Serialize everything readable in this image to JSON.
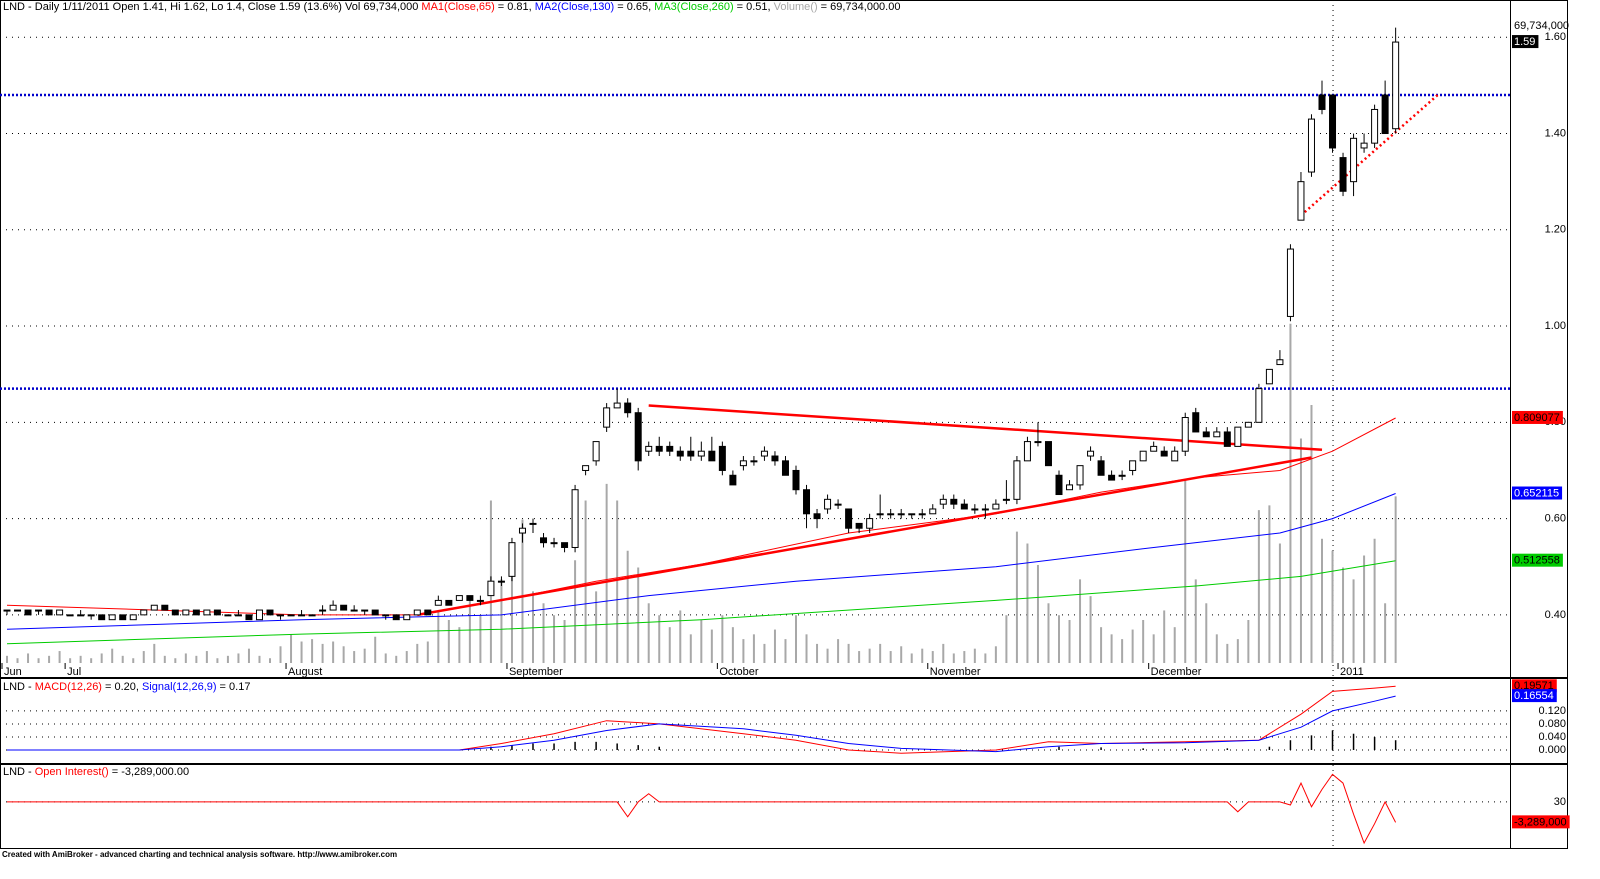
{
  "chart_data": [
    {
      "type": "candlestick",
      "title": "LND - Daily 1/11/2011 Open 1.41, Hi 1.62, Lo 1.4, Close 1.59 (13.6%) Vol 69,734,000",
      "categories": [
        "Jun",
        null,
        null,
        null,
        null,
        null,
        "Jul",
        null,
        null,
        null,
        null,
        null,
        null,
        null,
        null,
        null,
        null,
        null,
        null,
        null,
        null,
        null,
        null,
        null,
        null,
        null,
        null,
        "August",
        null,
        null,
        null,
        null,
        null,
        null,
        null,
        null,
        null,
        null,
        null,
        null,
        null,
        null,
        null,
        null,
        null,
        null,
        null,
        null,
        "September",
        null,
        null,
        null,
        null,
        null,
        null,
        null,
        null,
        null,
        null,
        null,
        null,
        null,
        null,
        null,
        null,
        null,
        null,
        null,
        "October",
        null,
        null,
        null,
        null,
        null,
        null,
        null,
        null,
        null,
        null,
        null,
        null,
        null,
        null,
        null,
        null,
        null,
        null,
        null,
        "November",
        null,
        null,
        null,
        null,
        null,
        null,
        null,
        null,
        null,
        null,
        null,
        null,
        null,
        null,
        null,
        null,
        null,
        null,
        null,
        null,
        "December",
        null,
        null,
        null,
        null,
        null,
        null,
        null,
        null,
        null,
        null,
        null,
        null,
        null,
        null,
        null,
        null,
        null,
        "2011",
        null,
        null,
        null,
        null,
        null
      ],
      "open": [
        0.41,
        0.41,
        0.41,
        0.41,
        0.41,
        0.4,
        0.4,
        0.4,
        0.4,
        0.4,
        0.39,
        0.4,
        0.39,
        0.4,
        0.41,
        0.42,
        0.41,
        0.4,
        0.41,
        0.4,
        0.41,
        0.4,
        0.4,
        0.4,
        0.39,
        0.41,
        0.4,
        0.4,
        0.4,
        0.4,
        0.41,
        0.41,
        0.42,
        0.41,
        0.41,
        0.41,
        0.4,
        0.4,
        0.39,
        0.4,
        0.41,
        0.42,
        0.43,
        0.43,
        0.44,
        0.43,
        0.44,
        0.47,
        0.48,
        0.57,
        0.59,
        0.56,
        0.55,
        0.55,
        0.54,
        0.7,
        0.72,
        0.79,
        0.83,
        0.84,
        0.82,
        0.74,
        0.75,
        0.75,
        0.74,
        0.74,
        0.73,
        0.74,
        0.75,
        0.69,
        0.71,
        0.72,
        0.73,
        0.73,
        0.72,
        0.7,
        0.66,
        0.61,
        0.62,
        0.63,
        0.62,
        0.59,
        0.58,
        0.61,
        0.61,
        0.61,
        0.61,
        0.61,
        0.61,
        0.63,
        0.64,
        0.63,
        0.62,
        0.62,
        0.62,
        0.64,
        0.64,
        0.72,
        0.76,
        0.76,
        0.69,
        0.66,
        0.67,
        0.73,
        0.72,
        0.69,
        0.69,
        0.7,
        0.72,
        0.74,
        0.74,
        0.72,
        0.74,
        0.82,
        0.78,
        0.77,
        0.78,
        0.75,
        0.79,
        0.8,
        0.88,
        0.92,
        1.02,
        1.22,
        1.32,
        1.48,
        1.48,
        1.35,
        1.3,
        1.37,
        1.38,
        1.48,
        1.41
      ],
      "high": [
        0.41,
        0.41,
        0.41,
        0.41,
        0.41,
        0.41,
        0.4,
        0.41,
        0.4,
        0.4,
        0.4,
        0.4,
        0.4,
        0.41,
        0.42,
        0.42,
        0.41,
        0.41,
        0.41,
        0.41,
        0.41,
        0.4,
        0.41,
        0.4,
        0.41,
        0.41,
        0.4,
        0.4,
        0.41,
        0.4,
        0.42,
        0.43,
        0.42,
        0.42,
        0.41,
        0.41,
        0.4,
        0.4,
        0.4,
        0.41,
        0.41,
        0.44,
        0.43,
        0.44,
        0.44,
        0.44,
        0.48,
        0.48,
        0.56,
        0.59,
        0.6,
        0.57,
        0.56,
        0.55,
        0.67,
        0.71,
        0.76,
        0.84,
        0.87,
        0.85,
        0.83,
        0.76,
        0.77,
        0.76,
        0.75,
        0.77,
        0.76,
        0.77,
        0.76,
        0.7,
        0.73,
        0.73,
        0.75,
        0.74,
        0.73,
        0.71,
        0.67,
        0.62,
        0.65,
        0.64,
        0.62,
        0.59,
        0.61,
        0.65,
        0.62,
        0.62,
        0.61,
        0.62,
        0.63,
        0.65,
        0.65,
        0.64,
        0.63,
        0.63,
        0.64,
        0.68,
        0.73,
        0.77,
        0.8,
        0.76,
        0.7,
        0.68,
        0.71,
        0.75,
        0.73,
        0.7,
        0.7,
        0.72,
        0.74,
        0.76,
        0.75,
        0.75,
        0.82,
        0.83,
        0.79,
        0.79,
        0.79,
        0.79,
        0.8,
        0.88,
        0.91,
        0.95,
        1.17,
        1.32,
        1.44,
        1.51,
        1.48,
        1.36,
        1.4,
        1.4,
        1.46,
        1.51,
        1.62
      ],
      "low": [
        0.4,
        0.41,
        0.4,
        0.4,
        0.4,
        0.4,
        0.4,
        0.4,
        0.39,
        0.39,
        0.39,
        0.39,
        0.39,
        0.4,
        0.41,
        0.41,
        0.4,
        0.4,
        0.4,
        0.4,
        0.4,
        0.4,
        0.4,
        0.39,
        0.39,
        0.4,
        0.39,
        0.4,
        0.4,
        0.4,
        0.4,
        0.41,
        0.41,
        0.41,
        0.4,
        0.4,
        0.39,
        0.39,
        0.39,
        0.4,
        0.4,
        0.42,
        0.42,
        0.43,
        0.43,
        0.42,
        0.44,
        0.46,
        0.47,
        0.55,
        0.57,
        0.54,
        0.54,
        0.53,
        0.53,
        0.69,
        0.71,
        0.78,
        0.83,
        0.81,
        0.7,
        0.73,
        0.73,
        0.73,
        0.72,
        0.72,
        0.72,
        0.72,
        0.69,
        0.67,
        0.7,
        0.71,
        0.72,
        0.71,
        0.69,
        0.65,
        0.58,
        0.58,
        0.61,
        0.62,
        0.57,
        0.57,
        0.57,
        0.6,
        0.6,
        0.6,
        0.6,
        0.6,
        0.61,
        0.62,
        0.62,
        0.62,
        0.61,
        0.6,
        0.62,
        0.63,
        0.63,
        0.72,
        0.75,
        0.71,
        0.65,
        0.66,
        0.66,
        0.72,
        0.69,
        0.68,
        0.68,
        0.69,
        0.72,
        0.74,
        0.73,
        0.72,
        0.73,
        0.78,
        0.77,
        0.77,
        0.75,
        0.75,
        0.79,
        0.8,
        0.88,
        0.92,
        1.01,
        1.22,
        1.31,
        1.44,
        1.36,
        1.27,
        1.27,
        1.36,
        1.37,
        1.4,
        1.4
      ],
      "close": [
        0.41,
        0.41,
        0.4,
        0.41,
        0.4,
        0.41,
        0.4,
        0.4,
        0.4,
        0.39,
        0.4,
        0.39,
        0.4,
        0.41,
        0.42,
        0.41,
        0.4,
        0.41,
        0.4,
        0.41,
        0.4,
        0.4,
        0.4,
        0.39,
        0.41,
        0.4,
        0.4,
        0.4,
        0.4,
        0.4,
        0.41,
        0.42,
        0.41,
        0.41,
        0.41,
        0.4,
        0.4,
        0.39,
        0.4,
        0.41,
        0.4,
        0.43,
        0.42,
        0.44,
        0.43,
        0.43,
        0.47,
        0.47,
        0.55,
        0.58,
        0.59,
        0.55,
        0.55,
        0.54,
        0.66,
        0.71,
        0.76,
        0.83,
        0.84,
        0.82,
        0.72,
        0.75,
        0.74,
        0.74,
        0.73,
        0.73,
        0.74,
        0.72,
        0.7,
        0.67,
        0.72,
        0.72,
        0.74,
        0.72,
        0.69,
        0.66,
        0.61,
        0.6,
        0.64,
        0.63,
        0.58,
        0.58,
        0.6,
        0.61,
        0.61,
        0.61,
        0.61,
        0.61,
        0.62,
        0.64,
        0.63,
        0.62,
        0.62,
        0.62,
        0.63,
        0.64,
        0.72,
        0.76,
        0.76,
        0.71,
        0.65,
        0.67,
        0.71,
        0.74,
        0.69,
        0.68,
        0.69,
        0.72,
        0.74,
        0.75,
        0.73,
        0.74,
        0.81,
        0.78,
        0.77,
        0.78,
        0.75,
        0.79,
        0.8,
        0.87,
        0.91,
        0.93,
        1.16,
        1.3,
        1.43,
        1.45,
        1.37,
        1.28,
        1.39,
        1.38,
        1.45,
        1.4,
        1.59
      ],
      "ylim": [
        0.3,
        1.64
      ],
      "yticks": [
        {
          "value": 0.4,
          "label": "0.40"
        },
        {
          "value": 0.6,
          "label": "0.60"
        },
        {
          "value": 0.8,
          "label": "0.80"
        },
        {
          "value": 1.0,
          "label": "1.00"
        },
        {
          "value": 1.2,
          "label": "1.20"
        },
        {
          "value": 1.4,
          "label": "1.40"
        },
        {
          "value": 1.6,
          "label": "1.60"
        }
      ],
      "grid": true,
      "close_marker": 1.59,
      "volume": {
        "name": "Volume()",
        "legend_value": "= 69,734,000.00",
        "color": "#a8a8a8",
        "ylim": [
          0,
          270000000
        ],
        "marker": {
          "value": 69734000,
          "label": "69,734,000"
        },
        "values": [
          3000000,
          2000000,
          4000000,
          2000000,
          3000000,
          5000000,
          2000000,
          3000000,
          2000000,
          4000000,
          6000000,
          3000000,
          2000000,
          5000000,
          8000000,
          3000000,
          2000000,
          4000000,
          3000000,
          5000000,
          2000000,
          3000000,
          4000000,
          6000000,
          3000000,
          2000000,
          7000000,
          12000000,
          9000000,
          10000000,
          8000000,
          9000000,
          7000000,
          5000000,
          6000000,
          11000000,
          4000000,
          3000000,
          5000000,
          8000000,
          9000000,
          22000000,
          18000000,
          15000000,
          28000000,
          20000000,
          68000000,
          35000000,
          48000000,
          60000000,
          30000000,
          25000000,
          20000000,
          18000000,
          43000000,
          68000000,
          30000000,
          75000000,
          68000000,
          47000000,
          40000000,
          25000000,
          20000000,
          15000000,
          22000000,
          12000000,
          18000000,
          14000000,
          20000000,
          15000000,
          10000000,
          12000000,
          8000000,
          14000000,
          10000000,
          20000000,
          12000000,
          8000000,
          6000000,
          10000000,
          8000000,
          5000000,
          6000000,
          8000000,
          5000000,
          7000000,
          4000000,
          6000000,
          5000000,
          8000000,
          4000000,
          5000000,
          6000000,
          4000000,
          7000000,
          20000000,
          55000000,
          50000000,
          41000000,
          25000000,
          20000000,
          18000000,
          35000000,
          28000000,
          15000000,
          12000000,
          10000000,
          14000000,
          18000000,
          12000000,
          22000000,
          15000000,
          77000000,
          35000000,
          25000000,
          12000000,
          8000000,
          10000000,
          18000000,
          64000000,
          66000000,
          50000000,
          142000000,
          94000000,
          108000000,
          52000000,
          47000000,
          40000000,
          35000000,
          45000000,
          52000000,
          25000000,
          69734000
        ]
      },
      "series": [
        {
          "name": "MA1(Close,65)",
          "legend_value": "= 0.81,",
          "color": "#ff0000",
          "marker": 0.809077,
          "x": [
            0,
            28,
            39,
            47,
            56,
            66,
            80,
            94,
            104,
            113,
            121,
            126,
            132
          ],
          "values": [
            0.42,
            0.4,
            0.4,
            0.43,
            0.47,
            0.505,
            0.57,
            0.61,
            0.655,
            0.685,
            0.7,
            0.74,
            0.809077
          ]
        },
        {
          "name": "MA2(Close,130)",
          "legend_value": "= 0.65,",
          "color": "#0000ff",
          "marker": 0.652115,
          "x": [
            0,
            28,
            47,
            61,
            75,
            94,
            109,
            121,
            126,
            132
          ],
          "values": [
            0.37,
            0.39,
            0.4,
            0.44,
            0.47,
            0.5,
            0.54,
            0.57,
            0.6,
            0.652115
          ]
        },
        {
          "name": "MA3(Close,260)",
          "legend_value": "= 0.51,",
          "color": "#00cc00",
          "marker": 0.512558,
          "x": [
            0,
            28,
            47,
            66,
            94,
            113,
            123,
            132
          ],
          "values": [
            0.34,
            0.36,
            0.37,
            0.39,
            0.43,
            0.46,
            0.48,
            0.512558
          ]
        }
      ],
      "hlines": {
        "color": "#0000cc",
        "values": [
          1.48,
          0.87
        ]
      },
      "trendlines": [
        {
          "color": "#ff0000",
          "style": "solid",
          "x": [
            61,
            125
          ],
          "values": [
            0.835,
            0.743
          ]
        },
        {
          "color": "#ff0000",
          "style": "solid",
          "x": [
            39,
            124
          ],
          "values": [
            0.4,
            0.727
          ]
        },
        {
          "color": "#ff0000",
          "style": "dotted",
          "x": [
            123,
            136
          ],
          "values": [
            1.23,
            1.48
          ]
        }
      ]
    },
    {
      "type": "line",
      "label": "LND -",
      "ylim": [
        -0.04,
        0.215
      ],
      "yticks": [
        {
          "value": 0,
          "label": "0.000"
        },
        {
          "value": 0.04,
          "label": "0.040"
        },
        {
          "value": 0.08,
          "label": "0.080"
        },
        {
          "value": 0.12,
          "label": "0.120"
        }
      ],
      "grid": true,
      "series": [
        {
          "name": "MACD(12,26)",
          "legend_value": "= 0.20,",
          "color": "#ff0000",
          "marker": 0.19571,
          "x": [
            0,
            43,
            47,
            52,
            57,
            62,
            70,
            75,
            80,
            85,
            94,
            99,
            104,
            112,
            119,
            123,
            126,
            130,
            132
          ],
          "values": [
            0,
            0,
            0.02,
            0.05,
            0.09,
            0.08,
            0.05,
            0.03,
            0,
            -0.01,
            0,
            0.025,
            0.02,
            0.025,
            0.03,
            0.11,
            0.18,
            0.19,
            0.19571
          ]
        },
        {
          "name": "Signal(12,26,9)",
          "legend_value": "= 0.17",
          "color": "#0000ff",
          "marker": 0.16554,
          "x": [
            0,
            43,
            47,
            52,
            57,
            62,
            70,
            75,
            80,
            85,
            94,
            99,
            104,
            112,
            119,
            123,
            126,
            130,
            132
          ],
          "values": [
            0,
            0,
            0.01,
            0.03,
            0.06,
            0.08,
            0.065,
            0.045,
            0.02,
            0.005,
            -0.005,
            0.01,
            0.02,
            0.022,
            0.03,
            0.07,
            0.12,
            0.15,
            0.16554
          ]
        }
      ],
      "histogram": {
        "color": "#000000",
        "x": [
          46,
          48,
          50,
          52,
          54,
          56,
          58,
          60,
          62,
          100,
          104,
          108,
          112,
          116,
          120,
          122,
          124,
          126,
          128,
          130,
          132
        ],
        "values": [
          0.01,
          0.015,
          0.02,
          0.02,
          0.025,
          0.025,
          0.02,
          0.015,
          0.01,
          0.01,
          0.008,
          0.005,
          0.005,
          0.005,
          0.01,
          0.03,
          0.045,
          0.06,
          0.05,
          0.04,
          0.03
        ]
      }
    },
    {
      "type": "line",
      "label": "LND -",
      "ylim": [
        -7400000,
        5750000
      ],
      "yticks": [
        30
      ],
      "grid": true,
      "series": [
        {
          "name": "Open Interest()",
          "legend_value": "= -3,289,000.00",
          "color": "#ff0000",
          "marker": {
            "value": -3289000,
            "label": "-3,289,000"
          },
          "x": [
            0,
            58,
            59,
            60,
            61,
            62,
            116,
            117,
            118,
            121,
            122,
            123,
            124,
            125,
            126,
            127,
            128,
            129,
            130,
            131,
            132
          ],
          "values": [
            30,
            30,
            -2400000,
            30,
            1300000,
            30,
            30,
            -1600000,
            30,
            30,
            -500000,
            3000000,
            -800000,
            2000000,
            4400000,
            3000000,
            -2000000,
            -6600000,
            -3500000,
            30,
            -3289000
          ]
        }
      ]
    }
  ],
  "footer": "Created with AmiBroker - advanced charting and technical analysis software. http://www.amibroker.com"
}
